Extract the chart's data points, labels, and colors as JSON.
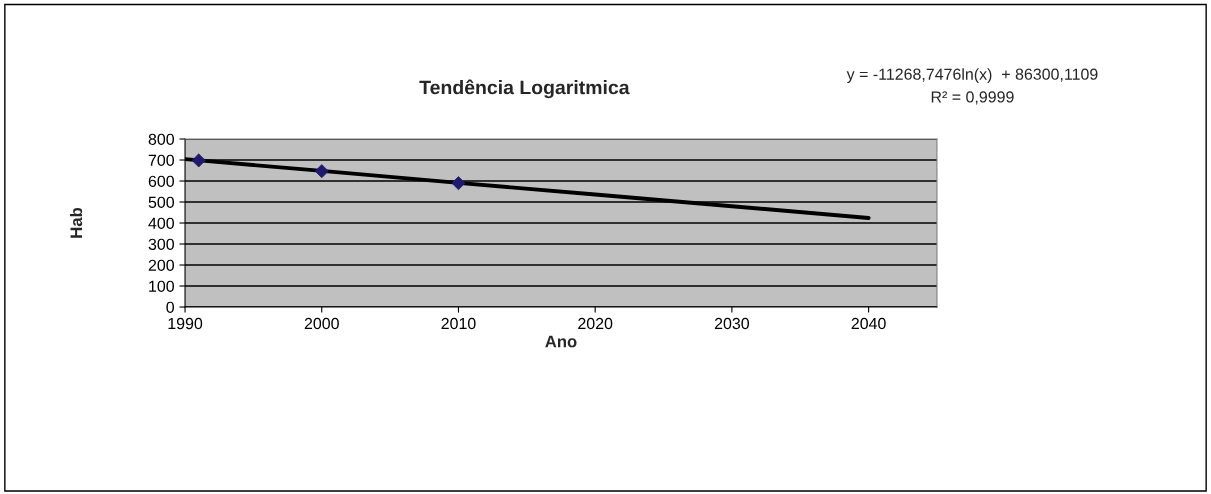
{
  "chart_data": {
    "type": "scatter",
    "title": "Tendência Logaritmica",
    "xlabel": "Ano",
    "ylabel": "Hab",
    "annotations": [
      "y = -11268,7476ln(x)  + 86300,1109",
      "R² = 0,9999"
    ],
    "series": [
      {
        "type": "line",
        "color": "#000000",
        "x": [
          1990,
          2000,
          2010,
          2020,
          2030,
          2040
        ],
        "values": [
          704,
          648,
          591,
          536,
          480,
          424
        ],
        "marker": "none",
        "line_style": "solid"
      },
      {
        "color": "#1f1a6e",
        "x": [
          1991,
          2000,
          2010
        ],
        "values": [
          698,
          647,
          590
        ],
        "marker": "diamond"
      }
    ],
    "xlim": [
      1990,
      2045
    ],
    "xticks": [
      1990,
      2000,
      2010,
      2020,
      2030,
      2040
    ],
    "ylim": [
      0,
      800
    ],
    "yticks": [
      0,
      100,
      200,
      300,
      400,
      500,
      600,
      700,
      800
    ],
    "grid": "y",
    "legend": false
  }
}
